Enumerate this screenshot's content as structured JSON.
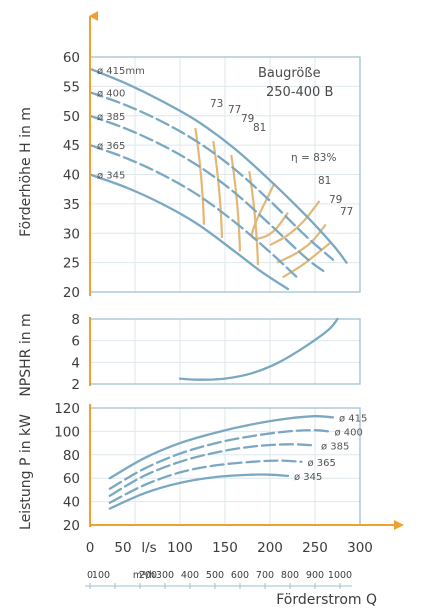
{
  "chart_data": {
    "type": "line",
    "annotation": [
      "Baugröße",
      "250-400 B"
    ],
    "x_axis": {
      "label": "Förderstrom Q",
      "primary_unit_label": "l/s",
      "primary_ticks": [
        "0",
        "50",
        "100",
        "150",
        "200",
        "250",
        "300"
      ],
      "secondary_unit_label": "m³/h",
      "secondary_ticks": [
        "0",
        "100",
        "200",
        "300",
        "400",
        "500",
        "600",
        "700",
        "800",
        "900",
        "1000"
      ],
      "xlim": [
        0,
        300
      ]
    },
    "panels": [
      {
        "id": "head",
        "ylabel": "Förderhöhe H in m",
        "ylim": [
          20,
          60
        ],
        "yticks": [
          "20",
          "25",
          "30",
          "35",
          "40",
          "45",
          "50",
          "55",
          "60"
        ],
        "series": [
          {
            "name": "ø 415mm",
            "style": "solid",
            "x": [
              0,
              40,
              80,
              120,
              160,
              200,
              240,
              270,
              285
            ],
            "y": [
              58,
              55.5,
              52.5,
              49,
              44.5,
              39,
              33,
              28,
              25
            ]
          },
          {
            "name": "ø 400",
            "style": "dashed",
            "x": [
              0,
              40,
              80,
              120,
              160,
              200,
              240,
              270
            ],
            "y": [
              54,
              51.8,
              49,
              45.5,
              41,
              35.5,
              29.5,
              25.5
            ]
          },
          {
            "name": "ø 385",
            "style": "dashed",
            "x": [
              0,
              40,
              80,
              120,
              160,
              200,
              240,
              260
            ],
            "y": [
              50,
              47.8,
              45,
              41.5,
              37,
              31.5,
              25.8,
              23.5
            ]
          },
          {
            "name": "ø 365",
            "style": "dashed",
            "x": [
              0,
              40,
              80,
              120,
              160,
              200,
              230
            ],
            "y": [
              45,
              42.8,
              40,
              36.5,
              32,
              26.8,
              22.5
            ]
          },
          {
            "name": "ø 345",
            "style": "solid",
            "x": [
              0,
              40,
              80,
              120,
              160,
              190,
              220
            ],
            "y": [
              40,
              37.8,
              35,
              31.5,
              27,
              23.5,
              20.5
            ]
          }
        ],
        "efficiency_label": "η = 83%",
        "efficiency_values": [
          "73",
          "77",
          "79",
          "81",
          "81",
          "79",
          "77"
        ]
      },
      {
        "id": "npsh",
        "ylabel": "NPSHR in m",
        "ylim": [
          2,
          8
        ],
        "yticks": [
          "2",
          "4",
          "6",
          "8"
        ],
        "series": [
          {
            "name": "",
            "style": "solid",
            "x": [
              100,
              120,
              150,
              180,
              210,
              240,
              265,
              275
            ],
            "y": [
              2.5,
              2.4,
              2.5,
              3.0,
              4.0,
              5.5,
              7.0,
              8.0
            ]
          }
        ]
      },
      {
        "id": "power",
        "ylabel": "Leistung P in kW",
        "ylim": [
          20,
          120
        ],
        "yticks": [
          "20",
          "40",
          "60",
          "80",
          "100",
          "120"
        ],
        "series": [
          {
            "name": "ø 415",
            "style": "solid",
            "x": [
              22,
              60,
              100,
              140,
              180,
              220,
              250,
              270
            ],
            "y": [
              60,
              77,
              90,
              99,
              106,
              111,
              113,
              112
            ]
          },
          {
            "name": "ø 400",
            "style": "dashed",
            "x": [
              22,
              60,
              100,
              140,
              180,
              220,
              250,
              265
            ],
            "y": [
              51,
              68,
              81,
              90,
              96,
              100,
              101,
              100
            ]
          },
          {
            "name": "ø 385",
            "style": "dashed",
            "x": [
              22,
              60,
              100,
              140,
              180,
              220,
              250
            ],
            "y": [
              45,
              62,
              74,
              82,
              87,
              89,
              88
            ]
          },
          {
            "name": "ø 365",
            "style": "dashed",
            "x": [
              22,
              60,
              100,
              140,
              180,
              210,
              235
            ],
            "y": [
              39,
              54,
              65,
              71,
              74,
              75,
              74
            ]
          },
          {
            "name": "ø 345",
            "style": "solid",
            "x": [
              22,
              60,
              100,
              140,
              180,
              200,
              220
            ],
            "y": [
              34,
              47,
              56,
              61,
              63,
              63,
              62
            ]
          }
        ]
      }
    ],
    "colors": {
      "curve": "#7aa8c2",
      "efficiency": "#e2b877",
      "axis_arrow": "#f0a030",
      "grid": "#dde8ee",
      "text": "#3d3d3d"
    }
  }
}
